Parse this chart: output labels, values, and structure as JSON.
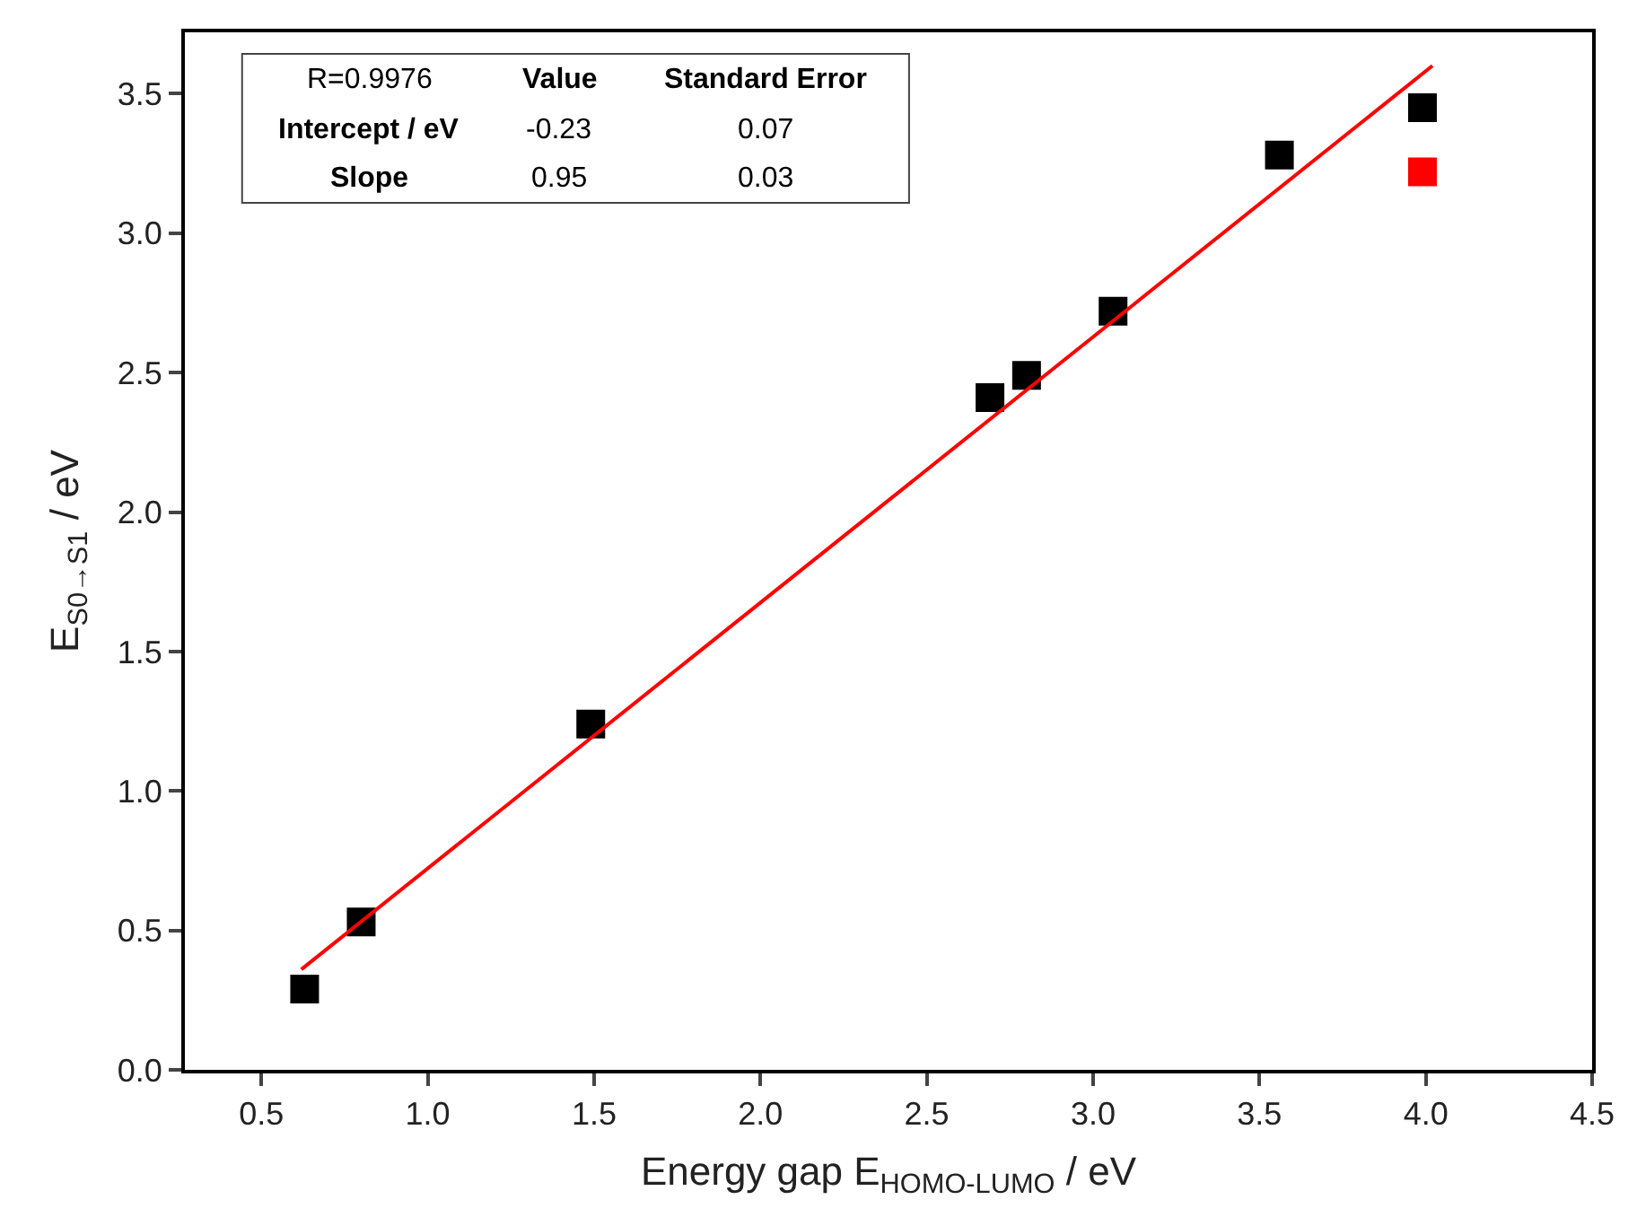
{
  "chart_data": {
    "type": "scatter",
    "xlabel": "Energy gap E$_{HOMO-LUMO}$ / eV",
    "ylabel": "E$_{S0→S1}$ / eV",
    "xlim": [
      0.27,
      4.5
    ],
    "xticks": [
      0.5,
      {
        "value": 1,
        "label": "1.0"
      },
      1.5,
      {
        "value": 2,
        "label": "2.0"
      },
      2.5,
      {
        "value": 3,
        "label": "3.0"
      },
      3.5,
      {
        "value": 4,
        "label": "4.0"
      },
      4.5
    ],
    "ylim": [
      0,
      3.72
    ],
    "yticks": [
      {
        "value": 0,
        "label": "0.0"
      },
      0.5,
      {
        "value": 1,
        "label": "1.0"
      },
      1.5,
      {
        "value": 2,
        "label": "2.0"
      },
      2.5,
      {
        "value": 3,
        "label": "3.0"
      },
      3.5
    ],
    "grid": false,
    "legend": false,
    "series": [
      {
        "marker": "square",
        "color": "#000000",
        "x": [
          0.63,
          0.8,
          1.49,
          2.69,
          2.8,
          3.06,
          3.56,
          3.99
        ],
        "values": [
          0.29,
          0.53,
          1.24,
          2.41,
          2.49,
          2.72,
          3.28,
          3.45
        ]
      },
      {
        "marker": "square",
        "color": "#ff0000",
        "x": [
          3.99
        ],
        "values": [
          3.22
        ]
      },
      {
        "type": "line",
        "marker": "none",
        "color": "#ff0000",
        "x": [
          0.62,
          4.02
        ],
        "values": [
          0.36,
          3.6
        ]
      }
    ],
    "annotations": [
      "R=0.9976",
      "Value",
      "Standard Error",
      "Intercept / eV",
      "-0.23",
      "0.07",
      "Slope",
      "0.95",
      "0.03"
    ]
  }
}
